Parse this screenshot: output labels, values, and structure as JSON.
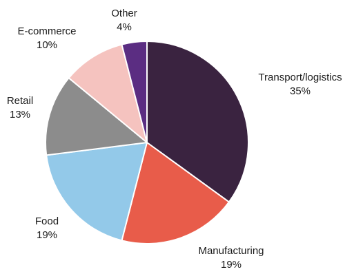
{
  "chart_data": {
    "type": "pie",
    "title": "",
    "start_angle_deg": 0,
    "direction": "clockwise",
    "slices": [
      {
        "label": "Transport/logistics",
        "value": 35,
        "value_label": "35%",
        "color": "#3a2340"
      },
      {
        "label": "Manufacturing",
        "value": 19,
        "value_label": "19%",
        "color": "#e85c4a"
      },
      {
        "label": "Food",
        "value": 19,
        "value_label": "19%",
        "color": "#93c9e9"
      },
      {
        "label": "Retail",
        "value": 13,
        "value_label": "13%",
        "color": "#8c8c8c"
      },
      {
        "label": "E-commerce",
        "value": 10,
        "value_label": "10%",
        "color": "#f5c3bf"
      },
      {
        "label": "Other",
        "value": 4,
        "value_label": "4%",
        "color": "#5b2d82"
      }
    ]
  }
}
